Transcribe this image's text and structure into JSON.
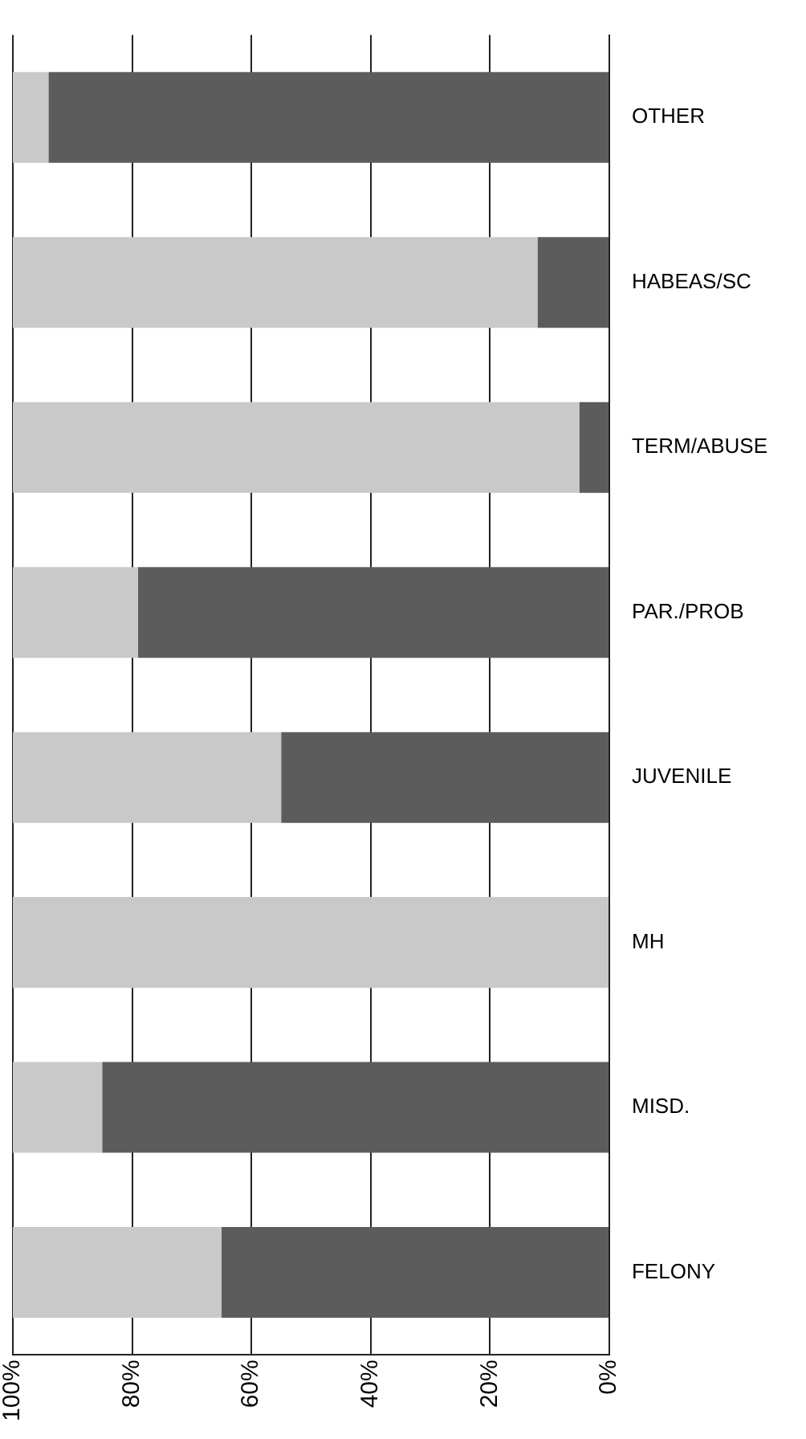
{
  "chart_data": {
    "type": "bar",
    "orientation": "horizontal",
    "stacked": true,
    "categories": [
      "OTHER",
      "HABEAS/SC",
      "TERM/ABUSE",
      "PAR./PROB",
      "JUVENILE",
      "MH",
      "MISD.",
      "FELONY"
    ],
    "series": [
      {
        "color": "#5c5c5c",
        "values": [
          94,
          12,
          5,
          79,
          55,
          0,
          85,
          65
        ]
      },
      {
        "color": "#c9c9c9",
        "values": [
          6,
          88,
          95,
          21,
          45,
          100,
          15,
          35
        ]
      }
    ],
    "xlim": [
      100,
      0
    ],
    "xticks": [
      {
        "value": 100,
        "label": "100%"
      },
      {
        "value": 80,
        "label": "80%"
      },
      {
        "value": 60,
        "label": "60%"
      },
      {
        "value": 40,
        "label": "40%"
      },
      {
        "value": 20,
        "label": "20%"
      },
      {
        "value": 0,
        "label": "0%"
      }
    ],
    "grid": "x",
    "legend": false
  }
}
